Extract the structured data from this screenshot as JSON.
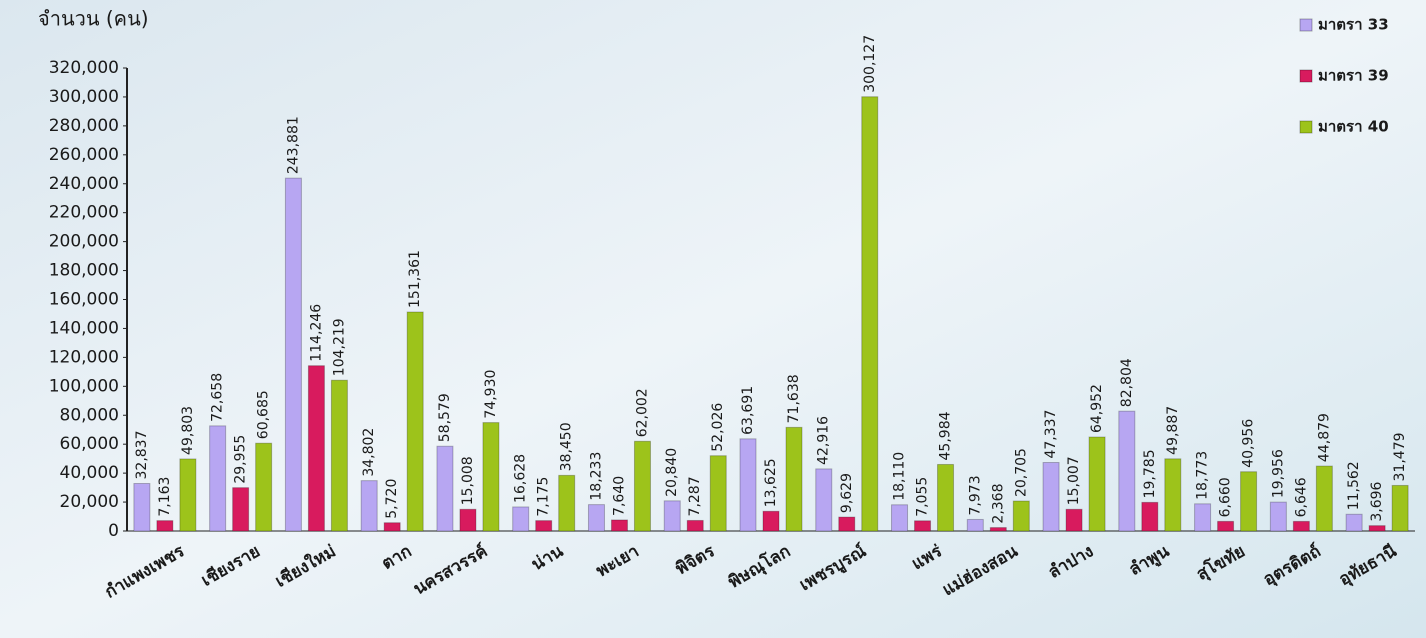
{
  "chart_data": {
    "type": "bar",
    "y_axis_title": "จำนวน (คน)",
    "categories": [
      "กำแพงเพชร",
      "เชียงราย",
      "เชียงใหม่",
      "ตาก",
      "นครสวรรค์",
      "น่าน",
      "พะเยา",
      "พิจิตร",
      "พิษณุโลก",
      "เพชรบูรณ์",
      "แพร่",
      "แม่ฮ่องสอน",
      "ลำปาง",
      "ลำพูน",
      "สุโขทัย",
      "อุตรดิตถ์",
      "อุทัยธานี"
    ],
    "series": [
      {
        "name": "มาตรา 33",
        "color": "#b7a6f2",
        "values": [
          32837,
          72658,
          243881,
          34802,
          58579,
          16628,
          18233,
          20840,
          63691,
          42916,
          18110,
          7973,
          47337,
          82804,
          18773,
          19956,
          11562
        ],
        "value_labels": [
          "32,837",
          "72,658",
          "243,881",
          "34,802",
          "58,579",
          "16,628",
          "18,233",
          "20,840",
          "63,691",
          "42,916",
          "18,110",
          "7,973",
          "47,337",
          "82,804",
          "18,773",
          "19,956",
          "11,562"
        ]
      },
      {
        "name": "มาตรา 39",
        "color": "#d81b5e",
        "values": [
          7163,
          29955,
          114246,
          5720,
          15008,
          7175,
          7640,
          7287,
          13625,
          9629,
          7055,
          2368,
          15007,
          19785,
          6660,
          6646,
          3696
        ],
        "value_labels": [
          "7,163",
          "29,955",
          "114,246",
          "5,720",
          "15,008",
          "7,175",
          "7,640",
          "7,287",
          "13,625",
          "9,629",
          "7,055",
          "2,368",
          "15,007",
          "19,785",
          "6,660",
          "6,646",
          "3,696"
        ]
      },
      {
        "name": "มาตรา 40",
        "color": "#9dc31b",
        "values": [
          49803,
          60685,
          104219,
          151361,
          74930,
          38450,
          62002,
          52026,
          71638,
          300127,
          45984,
          20705,
          64952,
          49887,
          40956,
          44879,
          31479
        ],
        "value_labels": [
          "49,803",
          "60,685",
          "104,219",
          "151,361",
          "74,930",
          "38,450",
          "62,002",
          "52,026",
          "71,638",
          "300,127",
          "45,984",
          "20,705",
          "64,952",
          "49,887",
          "40,956",
          "44,879",
          "31,479"
        ]
      }
    ],
    "ylim": [
      0,
      320000
    ],
    "yticks": [
      0,
      {
        "value": 20000,
        "label": "20,000"
      },
      {
        "value": 40000,
        "label": "40,000"
      },
      {
        "value": 60000,
        "label": "60,000"
      },
      {
        "value": 80000,
        "label": "80,000"
      },
      {
        "value": 100000,
        "label": "100,000"
      },
      {
        "value": 120000,
        "label": "120,000"
      },
      {
        "value": 140000,
        "label": "140,000"
      },
      {
        "value": 160000,
        "label": "160,000"
      },
      {
        "value": 180000,
        "label": "180,000"
      },
      {
        "value": 200000,
        "label": "200,000"
      },
      {
        "value": 220000,
        "label": "220,000"
      },
      {
        "value": 240000,
        "label": "240,000"
      },
      {
        "value": 260000,
        "label": "260,000"
      },
      {
        "value": 280000,
        "label": "280,000"
      },
      {
        "value": 300000,
        "label": "300,000"
      },
      {
        "value": 320000,
        "label": "320,000"
      }
    ],
    "grid": false,
    "legend": "top-right"
  }
}
